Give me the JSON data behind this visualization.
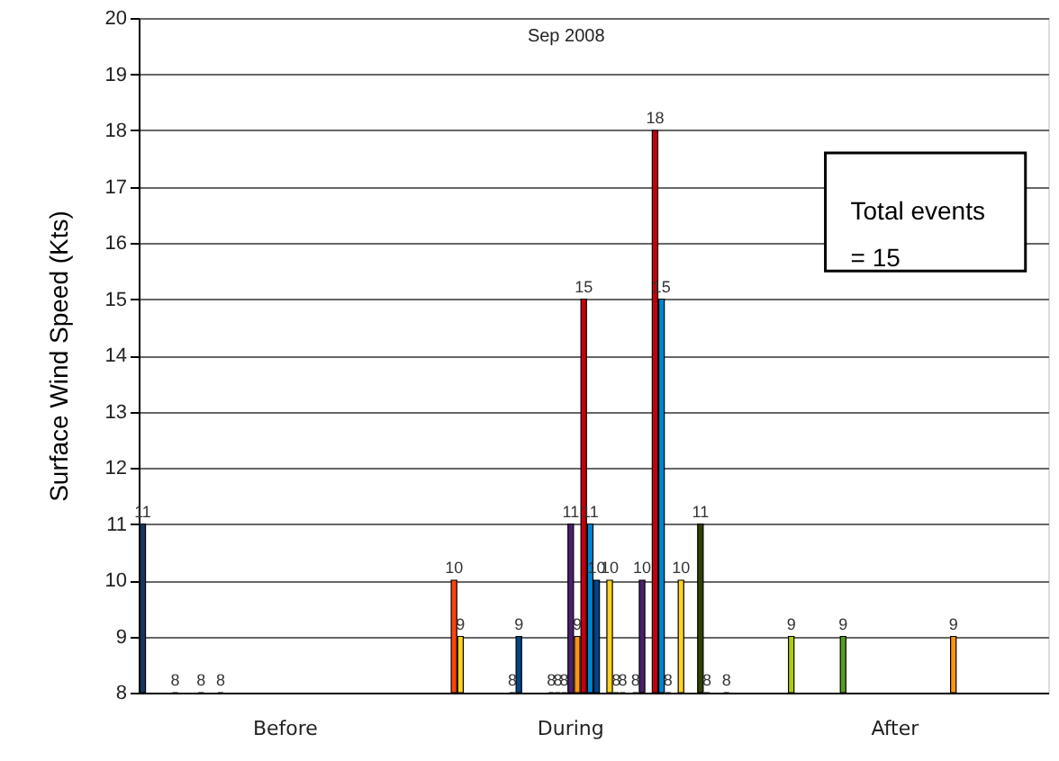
{
  "chart_data": {
    "type": "bar",
    "title": "Sep 2008",
    "ylabel": "Surface Wind Speed (Kts)",
    "categories": [
      null,
      null,
      null,
      null,
      null,
      null,
      null,
      null,
      null,
      null,
      null,
      null,
      null,
      null,
      null,
      null,
      null,
      null,
      null,
      null,
      null,
      null,
      "Before",
      null,
      null,
      null,
      null,
      null,
      null,
      null,
      null,
      null,
      null,
      null,
      null,
      null,
      null,
      null,
      null,
      null,
      null,
      null,
      null,
      null,
      null,
      null,
      null,
      null,
      null,
      null,
      null,
      null,
      null,
      null,
      null,
      null,
      null,
      null,
      null,
      null,
      null,
      null,
      null,
      null,
      null,
      null,
      "During",
      null,
      null,
      null,
      null,
      null,
      null,
      null,
      null,
      null,
      null,
      null,
      null,
      null,
      null,
      null,
      null,
      null,
      null,
      null,
      null,
      null,
      null,
      null,
      null,
      null,
      null,
      null,
      null,
      null,
      null,
      null,
      null,
      null,
      null,
      null,
      null,
      null,
      null,
      null,
      null,
      null,
      null,
      null,
      null,
      null,
      null,
      null,
      null,
      null,
      "After",
      null,
      null,
      null,
      null,
      null,
      null,
      null,
      null,
      null,
      null,
      null,
      null,
      null,
      null,
      null,
      null,
      null,
      null,
      null,
      null,
      null,
      null,
      null
    ],
    "values": [
      11,
      null,
      null,
      null,
      null,
      8,
      null,
      null,
      null,
      8,
      null,
      null,
      8,
      null,
      null,
      null,
      null,
      null,
      null,
      null,
      null,
      null,
      null,
      null,
      null,
      null,
      null,
      null,
      null,
      null,
      null,
      null,
      null,
      null,
      null,
      null,
      null,
      null,
      null,
      null,
      null,
      null,
      null,
      null,
      null,
      null,
      null,
      null,
      10,
      9,
      null,
      null,
      null,
      null,
      null,
      null,
      null,
      8,
      9,
      null,
      null,
      null,
      null,
      8,
      8,
      8,
      11,
      9,
      15,
      11,
      10,
      null,
      10,
      8,
      8,
      null,
      8,
      10,
      null,
      18,
      15,
      8,
      null,
      10,
      null,
      null,
      11,
      8,
      null,
      null,
      8,
      null,
      null,
      null,
      null,
      null,
      null,
      null,
      null,
      null,
      9,
      null,
      null,
      null,
      null,
      null,
      null,
      null,
      9,
      null,
      null,
      null,
      null,
      null,
      null,
      null,
      null,
      null,
      null,
      null,
      null,
      null,
      null,
      null,
      null,
      9,
      null,
      null,
      null,
      null,
      null,
      null,
      null,
      null,
      null,
      null,
      null,
      null,
      null,
      null
    ],
    "colors": [
      "#17375e",
      null,
      null,
      null,
      null,
      null,
      null,
      null,
      null,
      null,
      null,
      null,
      null,
      null,
      null,
      null,
      null,
      null,
      null,
      null,
      null,
      null,
      null,
      null,
      null,
      null,
      null,
      null,
      null,
      null,
      null,
      null,
      null,
      null,
      null,
      null,
      null,
      null,
      null,
      null,
      null,
      null,
      null,
      null,
      null,
      null,
      null,
      null,
      "#ff420e",
      "#ffd320",
      null,
      null,
      null,
      null,
      null,
      null,
      null,
      null,
      "#004586",
      null,
      null,
      null,
      null,
      null,
      null,
      null,
      "#4b1f6f",
      "#ff950e",
      "#c5000b",
      "#0084d1",
      "#004586",
      null,
      "#ffd320",
      null,
      null,
      null,
      null,
      "#4b1f6f",
      null,
      "#c5000b",
      "#0084d1",
      null,
      null,
      "#ffd320",
      null,
      null,
      "#314004",
      null,
      null,
      null,
      null,
      null,
      null,
      null,
      null,
      null,
      null,
      null,
      null,
      null,
      "#aecf00",
      null,
      null,
      null,
      null,
      null,
      null,
      null,
      "#579d1c",
      null,
      null,
      null,
      null,
      null,
      null,
      null,
      null,
      null,
      null,
      null,
      null,
      null,
      null,
      null,
      null,
      "#ff950e",
      null,
      null,
      null,
      null,
      null,
      null,
      null,
      null,
      null,
      null,
      null,
      null,
      null,
      null
    ],
    "ylim": [
      8,
      20
    ],
    "yticks": [
      8,
      9,
      10,
      11,
      12,
      13,
      14,
      15,
      16,
      17,
      18,
      19,
      20
    ],
    "grid": "y",
    "data_labels": true,
    "annotations": [
      "Total events\n= 15"
    ]
  }
}
